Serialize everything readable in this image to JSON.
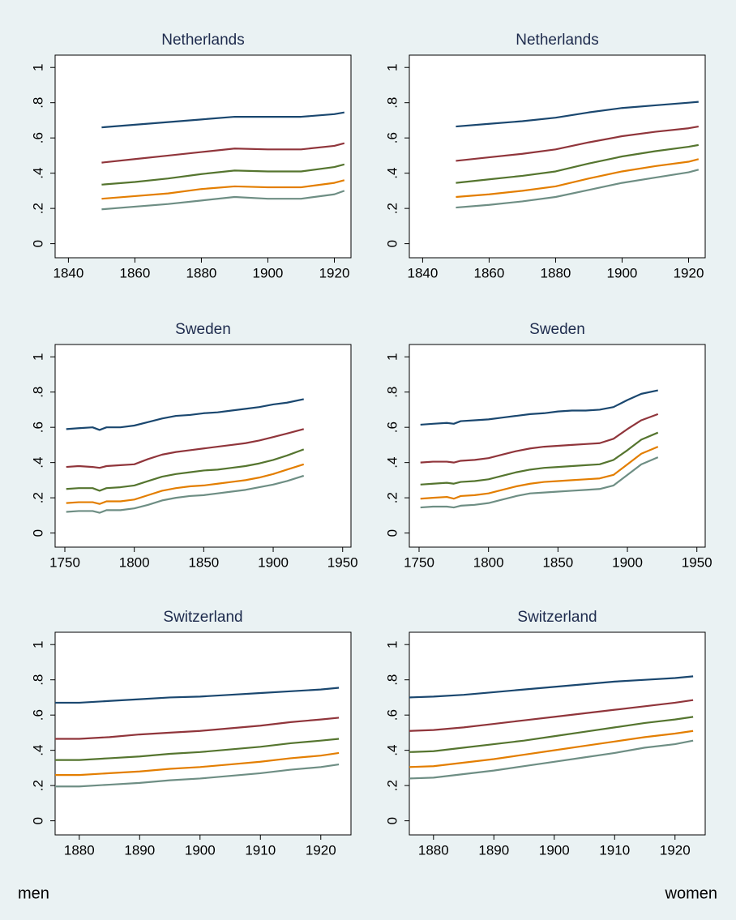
{
  "chart_data": [
    {
      "type": "line",
      "title": "Netherlands",
      "x": [
        1850,
        1860,
        1870,
        1880,
        1890,
        1900,
        1910,
        1920,
        1923
      ],
      "xlim": [
        1836,
        1925
      ],
      "xticks": [
        1840,
        1860,
        1880,
        1900,
        1920
      ],
      "ylim": [
        -0.08,
        1.07
      ],
      "yticks": [
        0,
        {
          "value": 0.2,
          "label": ".2"
        },
        {
          "value": 0.4,
          "label": ".4"
        },
        {
          "value": 0.6,
          "label": ".6"
        },
        {
          "value": 0.8,
          "label": ".8"
        },
        1
      ],
      "series": [
        {
          "color": "#1a476f",
          "values": [
            0.66,
            0.675,
            0.69,
            0.705,
            0.72,
            0.72,
            0.72,
            0.735,
            0.745
          ]
        },
        {
          "color": "#90353b",
          "values": [
            0.46,
            0.48,
            0.5,
            0.52,
            0.54,
            0.535,
            0.535,
            0.555,
            0.57
          ]
        },
        {
          "color": "#55752f",
          "values": [
            0.335,
            0.35,
            0.37,
            0.395,
            0.415,
            0.41,
            0.41,
            0.435,
            0.45
          ]
        },
        {
          "color": "#e37e00",
          "values": [
            0.255,
            0.27,
            0.285,
            0.31,
            0.325,
            0.32,
            0.32,
            0.345,
            0.36
          ]
        },
        {
          "color": "#6e8e84",
          "values": [
            0.195,
            0.21,
            0.225,
            0.245,
            0.265,
            0.255,
            0.255,
            0.28,
            0.3
          ]
        }
      ]
    },
    {
      "type": "line",
      "title": "Netherlands",
      "x": [
        1850,
        1860,
        1870,
        1880,
        1890,
        1900,
        1910,
        1920,
        1923
      ],
      "xlim": [
        1836,
        1925
      ],
      "xticks": [
        1840,
        1860,
        1880,
        1900,
        1920
      ],
      "ylim": [
        -0.08,
        1.07
      ],
      "yticks": [
        0,
        {
          "value": 0.2,
          "label": ".2"
        },
        {
          "value": 0.4,
          "label": ".4"
        },
        {
          "value": 0.6,
          "label": ".6"
        },
        {
          "value": 0.8,
          "label": ".8"
        },
        1
      ],
      "series": [
        {
          "color": "#1a476f",
          "values": [
            0.665,
            0.68,
            0.695,
            0.715,
            0.745,
            0.77,
            0.785,
            0.8,
            0.805
          ]
        },
        {
          "color": "#90353b",
          "values": [
            0.47,
            0.49,
            0.51,
            0.535,
            0.575,
            0.61,
            0.635,
            0.655,
            0.665
          ]
        },
        {
          "color": "#55752f",
          "values": [
            0.345,
            0.365,
            0.385,
            0.41,
            0.455,
            0.495,
            0.525,
            0.55,
            0.56
          ]
        },
        {
          "color": "#e37e00",
          "values": [
            0.265,
            0.28,
            0.3,
            0.325,
            0.37,
            0.41,
            0.44,
            0.465,
            0.48
          ]
        },
        {
          "color": "#6e8e84",
          "values": [
            0.205,
            0.22,
            0.24,
            0.265,
            0.305,
            0.345,
            0.375,
            0.405,
            0.42
          ]
        }
      ]
    },
    {
      "type": "line",
      "title": "Sweden",
      "x": [
        1751,
        1760,
        1770,
        1775,
        1780,
        1790,
        1800,
        1810,
        1820,
        1830,
        1840,
        1850,
        1860,
        1870,
        1880,
        1890,
        1900,
        1910,
        1922
      ],
      "xlim": [
        1743,
        1956
      ],
      "xticks": [
        1750,
        1800,
        1850,
        1900,
        1950
      ],
      "ylim": [
        -0.08,
        1.07
      ],
      "yticks": [
        0,
        {
          "value": 0.2,
          "label": ".2"
        },
        {
          "value": 0.4,
          "label": ".4"
        },
        {
          "value": 0.6,
          "label": ".6"
        },
        {
          "value": 0.8,
          "label": ".8"
        },
        1
      ],
      "series": [
        {
          "color": "#1a476f",
          "values": [
            0.59,
            0.595,
            0.6,
            0.585,
            0.6,
            0.6,
            0.61,
            0.63,
            0.65,
            0.665,
            0.67,
            0.68,
            0.685,
            0.695,
            0.705,
            0.715,
            0.73,
            0.74,
            0.76
          ]
        },
        {
          "color": "#90353b",
          "values": [
            0.375,
            0.38,
            0.375,
            0.37,
            0.38,
            0.385,
            0.39,
            0.42,
            0.445,
            0.46,
            0.47,
            0.48,
            0.49,
            0.5,
            0.51,
            0.525,
            0.545,
            0.565,
            0.59
          ]
        },
        {
          "color": "#55752f",
          "values": [
            0.25,
            0.255,
            0.255,
            0.24,
            0.255,
            0.26,
            0.27,
            0.295,
            0.32,
            0.335,
            0.345,
            0.355,
            0.36,
            0.37,
            0.38,
            0.395,
            0.415,
            0.44,
            0.475
          ]
        },
        {
          "color": "#e37e00",
          "values": [
            0.17,
            0.175,
            0.175,
            0.165,
            0.18,
            0.18,
            0.19,
            0.215,
            0.24,
            0.255,
            0.265,
            0.27,
            0.28,
            0.29,
            0.3,
            0.315,
            0.335,
            0.36,
            0.39
          ]
        },
        {
          "color": "#6e8e84",
          "values": [
            0.12,
            0.125,
            0.125,
            0.115,
            0.13,
            0.13,
            0.14,
            0.16,
            0.185,
            0.2,
            0.21,
            0.215,
            0.225,
            0.235,
            0.245,
            0.26,
            0.275,
            0.295,
            0.325
          ]
        }
      ]
    },
    {
      "type": "line",
      "title": "Sweden",
      "x": [
        1751,
        1760,
        1770,
        1775,
        1780,
        1790,
        1800,
        1810,
        1820,
        1830,
        1840,
        1850,
        1860,
        1870,
        1880,
        1890,
        1900,
        1910,
        1922
      ],
      "xlim": [
        1743,
        1956
      ],
      "xticks": [
        1750,
        1800,
        1850,
        1900,
        1950
      ],
      "ylim": [
        -0.08,
        1.07
      ],
      "yticks": [
        0,
        {
          "value": 0.2,
          "label": ".2"
        },
        {
          "value": 0.4,
          "label": ".4"
        },
        {
          "value": 0.6,
          "label": ".6"
        },
        {
          "value": 0.8,
          "label": ".8"
        },
        1
      ],
      "series": [
        {
          "color": "#1a476f",
          "values": [
            0.615,
            0.62,
            0.625,
            0.62,
            0.635,
            0.64,
            0.645,
            0.655,
            0.665,
            0.675,
            0.68,
            0.69,
            0.695,
            0.695,
            0.7,
            0.715,
            0.755,
            0.79,
            0.81
          ]
        },
        {
          "color": "#90353b",
          "values": [
            0.4,
            0.405,
            0.405,
            0.4,
            0.41,
            0.415,
            0.425,
            0.445,
            0.465,
            0.48,
            0.49,
            0.495,
            0.5,
            0.505,
            0.51,
            0.535,
            0.59,
            0.64,
            0.675
          ]
        },
        {
          "color": "#55752f",
          "values": [
            0.275,
            0.28,
            0.285,
            0.28,
            0.29,
            0.295,
            0.305,
            0.325,
            0.345,
            0.36,
            0.37,
            0.375,
            0.38,
            0.385,
            0.39,
            0.415,
            0.47,
            0.53,
            0.57
          ]
        },
        {
          "color": "#e37e00",
          "values": [
            0.195,
            0.2,
            0.205,
            0.195,
            0.21,
            0.215,
            0.225,
            0.245,
            0.265,
            0.28,
            0.29,
            0.295,
            0.3,
            0.305,
            0.31,
            0.33,
            0.39,
            0.45,
            0.49
          ]
        },
        {
          "color": "#6e8e84",
          "values": [
            0.145,
            0.15,
            0.15,
            0.145,
            0.155,
            0.16,
            0.17,
            0.19,
            0.21,
            0.225,
            0.23,
            0.235,
            0.24,
            0.245,
            0.25,
            0.27,
            0.33,
            0.39,
            0.43
          ]
        }
      ]
    },
    {
      "type": "line",
      "title": "Switzerland",
      "x": [
        1876,
        1880,
        1885,
        1890,
        1895,
        1900,
        1905,
        1910,
        1915,
        1920,
        1923
      ],
      "xlim": [
        1876,
        1925
      ],
      "xticks": [
        1880,
        1890,
        1900,
        1910,
        1920
      ],
      "ylim": [
        -0.08,
        1.07
      ],
      "yticks": [
        0,
        {
          "value": 0.2,
          "label": ".2"
        },
        {
          "value": 0.4,
          "label": ".4"
        },
        {
          "value": 0.6,
          "label": ".6"
        },
        {
          "value": 0.8,
          "label": ".8"
        },
        1
      ],
      "series": [
        {
          "color": "#1a476f",
          "values": [
            0.67,
            0.67,
            0.68,
            0.69,
            0.7,
            0.705,
            0.715,
            0.725,
            0.735,
            0.745,
            0.755
          ]
        },
        {
          "color": "#90353b",
          "values": [
            0.465,
            0.465,
            0.475,
            0.49,
            0.5,
            0.51,
            0.525,
            0.54,
            0.56,
            0.575,
            0.585
          ]
        },
        {
          "color": "#55752f",
          "values": [
            0.345,
            0.345,
            0.355,
            0.365,
            0.38,
            0.39,
            0.405,
            0.42,
            0.44,
            0.455,
            0.465
          ]
        },
        {
          "color": "#e37e00",
          "values": [
            0.26,
            0.26,
            0.27,
            0.28,
            0.295,
            0.305,
            0.32,
            0.335,
            0.355,
            0.37,
            0.385
          ]
        },
        {
          "color": "#6e8e84",
          "values": [
            0.195,
            0.195,
            0.205,
            0.215,
            0.23,
            0.24,
            0.255,
            0.27,
            0.29,
            0.305,
            0.32
          ]
        }
      ]
    },
    {
      "type": "line",
      "title": "Switzerland",
      "x": [
        1876,
        1880,
        1885,
        1890,
        1895,
        1900,
        1905,
        1910,
        1915,
        1920,
        1923
      ],
      "xlim": [
        1876,
        1925
      ],
      "xticks": [
        1880,
        1890,
        1900,
        1910,
        1920
      ],
      "ylim": [
        -0.08,
        1.07
      ],
      "yticks": [
        0,
        {
          "value": 0.2,
          "label": ".2"
        },
        {
          "value": 0.4,
          "label": ".4"
        },
        {
          "value": 0.6,
          "label": ".6"
        },
        {
          "value": 0.8,
          "label": ".8"
        },
        1
      ],
      "series": [
        {
          "color": "#1a476f",
          "values": [
            0.7,
            0.705,
            0.715,
            0.73,
            0.745,
            0.76,
            0.775,
            0.79,
            0.8,
            0.81,
            0.82
          ]
        },
        {
          "color": "#90353b",
          "values": [
            0.51,
            0.515,
            0.53,
            0.55,
            0.57,
            0.59,
            0.61,
            0.63,
            0.65,
            0.67,
            0.685
          ]
        },
        {
          "color": "#55752f",
          "values": [
            0.39,
            0.395,
            0.415,
            0.435,
            0.455,
            0.48,
            0.505,
            0.53,
            0.555,
            0.575,
            0.59
          ]
        },
        {
          "color": "#e37e00",
          "values": [
            0.305,
            0.31,
            0.33,
            0.35,
            0.375,
            0.4,
            0.425,
            0.45,
            0.475,
            0.495,
            0.51
          ]
        },
        {
          "color": "#6e8e84",
          "values": [
            0.24,
            0.245,
            0.265,
            0.285,
            0.31,
            0.335,
            0.36,
            0.385,
            0.415,
            0.435,
            0.455
          ]
        }
      ]
    }
  ],
  "labels": [
    "men",
    "women"
  ]
}
